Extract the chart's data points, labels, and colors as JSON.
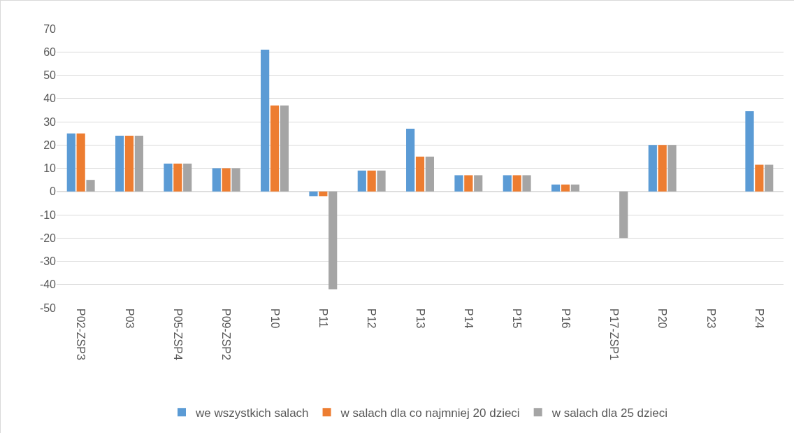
{
  "chart_data": {
    "type": "bar",
    "categories": [
      "P02-ZSP3",
      "P03",
      "P05-ZSP4",
      "P09-ZSP2",
      "P10",
      "P11",
      "P12",
      "P13",
      "P14",
      "P15",
      "P16",
      "P17-ZSP1",
      "P20",
      "P23",
      "P24"
    ],
    "series": [
      {
        "name": "we wszystkich salach",
        "color": "#5b9bd5",
        "values": [
          25,
          24,
          12,
          10,
          61,
          -2,
          9,
          27,
          7,
          7,
          3,
          null,
          20,
          null,
          34.5
        ]
      },
      {
        "name": "w salach dla co najmniej 20 dzieci",
        "color": "#ed7d31",
        "values": [
          25,
          24,
          12,
          10,
          37,
          -2,
          9,
          15,
          7,
          7,
          3,
          null,
          20,
          null,
          11.5
        ]
      },
      {
        "name": "w salach dla 25 dzieci",
        "color": "#a5a5a5",
        "values": [
          5,
          24,
          12,
          10,
          37,
          -42,
          9,
          15,
          7,
          7,
          3,
          -20,
          20,
          null,
          11.5
        ]
      }
    ],
    "ylim": [
      -50,
      70
    ],
    "yticks": [
      -50,
      -40,
      -30,
      -20,
      -10,
      0,
      10,
      20,
      30,
      40,
      50,
      60,
      70
    ],
    "grid": "y",
    "legend": "bottom"
  }
}
